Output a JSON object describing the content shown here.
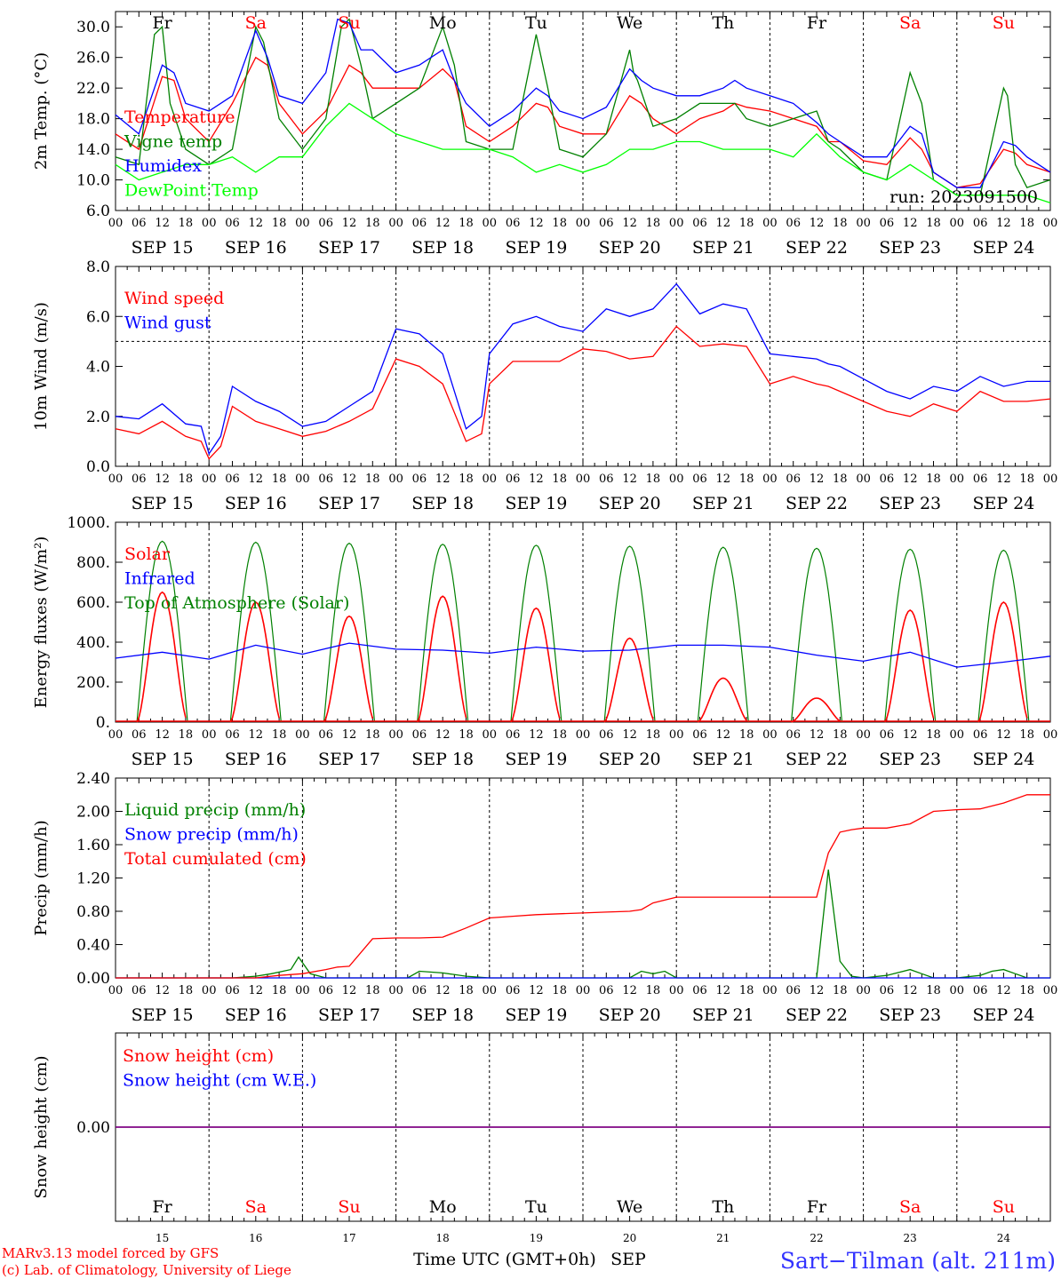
{
  "chart_data": [
    {
      "type": "line",
      "ylabel": "2m Temp. (°C)",
      "yticks": [
        "30.0",
        "26.0",
        "22.0",
        "18.0",
        "14.0",
        "10.0",
        "6.0"
      ],
      "ylim": [
        6,
        32
      ],
      "annotation": "run: 2023091500",
      "x_unit": "hours since SEP 15 00 UTC",
      "series": [
        {
          "name": "Temperature",
          "color": "#ff0000",
          "x": [
            0,
            6,
            12,
            15,
            18,
            24,
            30,
            36,
            39,
            42,
            48,
            54,
            60,
            63,
            66,
            72,
            78,
            84,
            87,
            90,
            96,
            102,
            108,
            111,
            114,
            120,
            126,
            132,
            135,
            138,
            144,
            150,
            156,
            159,
            162,
            168,
            174,
            180,
            183,
            186,
            192,
            198,
            204,
            207,
            210,
            216,
            222,
            228,
            231,
            234,
            240
          ],
          "values": [
            16,
            14,
            23.5,
            23,
            18,
            15,
            20,
            26,
            25,
            20,
            16,
            19,
            25,
            24,
            22,
            22,
            22,
            24.5,
            23,
            17,
            15,
            17,
            20,
            19.5,
            17,
            16,
            16,
            21,
            20,
            18,
            16,
            18,
            19,
            20,
            19.5,
            19,
            18,
            17,
            15,
            15,
            12.5,
            12,
            15.5,
            14,
            11,
            9,
            9.5,
            14,
            13.5,
            12,
            11
          ]
        },
        {
          "name": "Vigne temp",
          "color": "#008000",
          "x": [
            0,
            6,
            10,
            12,
            14,
            18,
            24,
            30,
            36,
            38,
            42,
            48,
            54,
            58,
            60,
            63,
            66,
            72,
            78,
            84,
            87,
            90,
            96,
            102,
            108,
            111,
            114,
            120,
            126,
            132,
            133,
            134,
            138,
            144,
            150,
            156,
            159,
            162,
            168,
            174,
            180,
            183,
            186,
            192,
            198,
            204,
            207,
            210,
            216,
            222,
            228,
            229,
            231,
            234,
            240
          ],
          "values": [
            13,
            12,
            29,
            30,
            20,
            14,
            12,
            14,
            30,
            28,
            18,
            14,
            18,
            30,
            31,
            25,
            18,
            20,
            22,
            30,
            25,
            15,
            14,
            14,
            29,
            22,
            14,
            13,
            16,
            27,
            24,
            23,
            17,
            18,
            20,
            20,
            20,
            18,
            17,
            18,
            19,
            15,
            14,
            11,
            10,
            24,
            20,
            10,
            8,
            8,
            22,
            21,
            12,
            9,
            10
          ]
        },
        {
          "name": "Humidex",
          "color": "#0000ff",
          "x": [
            0,
            6,
            12,
            15,
            18,
            24,
            30,
            36,
            39,
            42,
            48,
            54,
            57,
            60,
            63,
            66,
            72,
            78,
            84,
            87,
            90,
            96,
            102,
            108,
            111,
            114,
            120,
            126,
            132,
            135,
            138,
            144,
            150,
            156,
            159,
            162,
            168,
            174,
            180,
            183,
            186,
            192,
            198,
            204,
            207,
            210,
            216,
            222,
            228,
            231,
            234,
            240
          ],
          "values": [
            18.5,
            16,
            25,
            24,
            20,
            19,
            21,
            29.5,
            26,
            21,
            20,
            24,
            31,
            30.5,
            27,
            27,
            24,
            25,
            27,
            23,
            20,
            17,
            19,
            22,
            21,
            19,
            18,
            19.5,
            24.5,
            23,
            22,
            21,
            21,
            22,
            23,
            22,
            21,
            20,
            17.5,
            16,
            15,
            13,
            13,
            17,
            16,
            11,
            9,
            9,
            15,
            14.5,
            13,
            11
          ]
        },
        {
          "name": "DewPoint Temp",
          "color": "#00ff00",
          "x": [
            0,
            6,
            12,
            18,
            24,
            30,
            36,
            42,
            48,
            54,
            60,
            66,
            72,
            78,
            84,
            90,
            96,
            102,
            108,
            114,
            120,
            126,
            132,
            138,
            144,
            150,
            156,
            162,
            168,
            174,
            180,
            186,
            192,
            198,
            204,
            210,
            216,
            222,
            228,
            234,
            240
          ],
          "values": [
            12,
            10,
            11,
            12,
            12,
            13,
            11,
            13,
            13,
            17,
            20,
            18,
            16,
            15,
            14,
            14,
            14,
            13,
            11,
            12,
            11,
            12,
            14,
            14,
            15,
            15,
            14,
            14,
            14,
            13,
            16,
            13,
            11,
            10,
            12,
            10,
            8,
            8,
            8,
            8,
            7
          ]
        }
      ]
    },
    {
      "type": "line",
      "ylabel": "10m Wind (m/s)",
      "yticks": [
        "8.0",
        "6.0",
        "4.0",
        "2.0",
        "0.0"
      ],
      "ylim": [
        0,
        8
      ],
      "hline": 5,
      "series": [
        {
          "name": "Wind speed",
          "color": "#ff0000",
          "x": [
            0,
            6,
            12,
            18,
            22,
            24,
            27,
            30,
            36,
            42,
            48,
            54,
            60,
            66,
            72,
            78,
            84,
            90,
            94,
            96,
            102,
            108,
            114,
            120,
            126,
            132,
            138,
            144,
            150,
            156,
            162,
            168,
            174,
            180,
            183,
            186,
            192,
            198,
            204,
            210,
            216,
            222,
            228,
            234,
            240
          ],
          "values": [
            1.5,
            1.3,
            1.8,
            1.2,
            1.0,
            0.3,
            0.8,
            2.4,
            1.8,
            1.5,
            1.2,
            1.4,
            1.8,
            2.3,
            4.3,
            4.0,
            3.3,
            1.0,
            1.3,
            3.3,
            4.2,
            4.2,
            4.2,
            4.7,
            4.6,
            4.3,
            4.4,
            5.6,
            4.8,
            4.9,
            4.8,
            3.3,
            3.6,
            3.3,
            3.2,
            3.0,
            2.6,
            2.2,
            2.0,
            2.5,
            2.2,
            3.0,
            2.6,
            2.6,
            2.7
          ]
        },
        {
          "name": "Wind gust",
          "color": "#0000ff",
          "x": [
            0,
            6,
            12,
            18,
            22,
            24,
            27,
            30,
            36,
            42,
            48,
            54,
            60,
            66,
            72,
            78,
            84,
            90,
            94,
            96,
            102,
            108,
            114,
            120,
            126,
            132,
            138,
            144,
            150,
            156,
            162,
            168,
            174,
            180,
            183,
            186,
            192,
            198,
            204,
            210,
            216,
            222,
            228,
            234,
            240
          ],
          "values": [
            2.0,
            1.9,
            2.5,
            1.7,
            1.6,
            0.5,
            1.2,
            3.2,
            2.6,
            2.2,
            1.6,
            1.8,
            2.4,
            3.0,
            5.5,
            5.3,
            4.5,
            1.5,
            2.0,
            4.5,
            5.7,
            6.0,
            5.6,
            5.4,
            6.3,
            6.0,
            6.3,
            7.3,
            6.1,
            6.5,
            6.3,
            4.5,
            4.4,
            4.3,
            4.1,
            4.0,
            3.5,
            3.0,
            2.7,
            3.2,
            3.0,
            3.6,
            3.2,
            3.4,
            3.4
          ]
        }
      ]
    },
    {
      "type": "line",
      "ylabel": "Energy fluxes (W/m²)",
      "yticks": [
        "1000.",
        "800.",
        "600.",
        "400.",
        "200.",
        "0."
      ],
      "ylim": [
        0,
        1000
      ],
      "day_length_hours": 24,
      "solar_window_hours": [
        5.5,
        18.5
      ],
      "toa_peak": [
        905,
        900,
        895,
        890,
        885,
        880,
        875,
        870,
        865,
        860
      ],
      "solar_peak": [
        650,
        600,
        530,
        630,
        570,
        420,
        220,
        120,
        560,
        600
      ],
      "series": [
        {
          "name": "Solar",
          "color": "#ff0000"
        },
        {
          "name": "Infrared",
          "color": "#0000ff",
          "x": [
            0,
            12,
            24,
            36,
            48,
            60,
            72,
            84,
            96,
            108,
            120,
            132,
            144,
            156,
            168,
            180,
            192,
            204,
            216,
            228,
            240
          ],
          "values": [
            320,
            350,
            315,
            385,
            340,
            395,
            365,
            360,
            345,
            375,
            355,
            360,
            385,
            385,
            375,
            335,
            305,
            350,
            275,
            300,
            330
          ]
        },
        {
          "name": "Top of Atmosphere (Solar)",
          "color": "#008000"
        }
      ]
    },
    {
      "type": "line",
      "ylabel": "Precip (mm/h)",
      "yticks": [
        "2.40",
        "2.00",
        "1.60",
        "1.20",
        "0.80",
        "0.40",
        "0.00"
      ],
      "ylim": [
        0,
        2.4
      ],
      "series": [
        {
          "name": "Liquid precip (mm/h)",
          "color": "#008000",
          "x": [
            0,
            30,
            36,
            40,
            45,
            47,
            50,
            54,
            60,
            75,
            78,
            84,
            90,
            96,
            102,
            132,
            135,
            138,
            141,
            144,
            174,
            180,
            183,
            186,
            189,
            192,
            198,
            204,
            207,
            210,
            216,
            222,
            225,
            228,
            231,
            234,
            240
          ],
          "values": [
            0,
            0,
            0.02,
            0.05,
            0.1,
            0.25,
            0.05,
            0,
            0,
            0,
            0.08,
            0.06,
            0.02,
            0,
            0,
            0,
            0.08,
            0.05,
            0.08,
            0,
            0,
            0,
            1.3,
            0.2,
            0.02,
            0,
            0.03,
            0.1,
            0.05,
            0,
            0,
            0.03,
            0.08,
            0.1,
            0.05,
            0,
            0
          ]
        },
        {
          "name": "Snow precip (mm/h)",
          "color": "#0000ff",
          "x": [
            0,
            240
          ],
          "values": [
            0,
            0
          ]
        },
        {
          "name": "Total cumulated (cm)",
          "color": "#ff0000",
          "x": [
            0,
            36,
            42,
            48,
            54,
            57,
            60,
            66,
            72,
            78,
            84,
            90,
            96,
            102,
            108,
            114,
            120,
            126,
            132,
            135,
            138,
            144,
            150,
            156,
            162,
            168,
            180,
            183,
            186,
            189,
            192,
            198,
            204,
            210,
            216,
            222,
            228,
            234,
            240
          ],
          "values": [
            0,
            0,
            0.03,
            0.05,
            0.1,
            0.13,
            0.14,
            0.47,
            0.48,
            0.48,
            0.49,
            0.6,
            0.72,
            0.74,
            0.76,
            0.77,
            0.78,
            0.79,
            0.8,
            0.82,
            0.9,
            0.97,
            0.97,
            0.97,
            0.97,
            0.97,
            0.97,
            1.5,
            1.75,
            1.78,
            1.8,
            1.8,
            1.85,
            2.0,
            2.02,
            2.03,
            2.1,
            2.2,
            2.2
          ]
        }
      ]
    },
    {
      "type": "line",
      "ylabel": "Snow height (cm)",
      "yticks": [
        "0.00"
      ],
      "series": [
        {
          "name": "Snow height (cm)",
          "color": "#ff0000",
          "x": [
            0,
            240
          ],
          "values": [
            0,
            0
          ]
        },
        {
          "name": "Snow height (cm W.E.)",
          "color": "#0000ff",
          "x": [
            0,
            240
          ],
          "values": [
            0,
            0
          ]
        }
      ]
    }
  ],
  "axes": {
    "hour_ticks": [
      "00",
      "06",
      "12",
      "18"
    ],
    "end_tick": "00",
    "date_labels": [
      "SEP 15",
      "SEP 16",
      "SEP 17",
      "SEP 18",
      "SEP 19",
      "SEP 20",
      "SEP 21",
      "SEP 22",
      "SEP 23",
      "SEP 24"
    ],
    "weekdays": [
      {
        "label": "Fr",
        "weekend": false
      },
      {
        "label": "Sa",
        "weekend": true
      },
      {
        "label": "Su",
        "weekend": true
      },
      {
        "label": "Mo",
        "weekend": false
      },
      {
        "label": "Tu",
        "weekend": false
      },
      {
        "label": "We",
        "weekend": false
      },
      {
        "label": "Th",
        "weekend": false
      },
      {
        "label": "Fr",
        "weekend": false
      },
      {
        "label": "Sa",
        "weekend": true
      },
      {
        "label": "Su",
        "weekend": true
      }
    ],
    "day_numbers": [
      "15",
      "16",
      "17",
      "18",
      "19",
      "20",
      "21",
      "22",
      "23",
      "24"
    ]
  },
  "footer": {
    "credit_line1": "MARv3.13 model forced by GFS",
    "credit_line2": "(c) Lab. of Climatology, University of Liege",
    "xlabel": "Time UTC (GMT+0h)",
    "month": "SEP",
    "station": "Sart−Tilman (alt. 211m)"
  }
}
